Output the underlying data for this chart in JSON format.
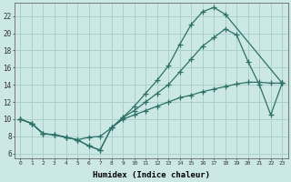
{
  "xlabel": "Humidex (Indice chaleur)",
  "bg_color": "#cce8e4",
  "grid_color": "#aacfcc",
  "line_color": "#2d7068",
  "xlim": [
    -0.5,
    23.5
  ],
  "ylim": [
    5.5,
    23.5
  ],
  "xticks": [
    0,
    1,
    2,
    3,
    4,
    5,
    6,
    7,
    8,
    9,
    10,
    11,
    12,
    13,
    14,
    15,
    16,
    17,
    18,
    19,
    20,
    21,
    22,
    23
  ],
  "yticks": [
    6,
    8,
    10,
    12,
    14,
    16,
    18,
    20,
    22
  ],
  "line1_x": [
    0,
    1,
    2,
    3,
    4,
    5,
    6,
    7,
    8,
    9,
    10,
    11,
    12,
    13,
    14,
    15,
    16,
    17,
    18,
    23
  ],
  "line1_y": [
    10,
    9.5,
    8.3,
    8.2,
    7.9,
    7.6,
    6.9,
    6.4,
    9.0,
    10.2,
    11.5,
    13.0,
    14.5,
    16.2,
    18.7,
    21.0,
    22.5,
    23.0,
    22.2,
    14.2
  ],
  "line2_x": [
    0,
    1,
    2,
    3,
    4,
    5,
    6,
    7,
    8,
    9,
    10,
    11,
    12,
    13,
    14,
    15,
    16,
    17,
    18,
    19,
    20,
    21,
    22,
    23
  ],
  "line2_y": [
    10,
    9.5,
    8.3,
    8.2,
    7.9,
    7.6,
    6.9,
    6.4,
    9.0,
    10.2,
    11.0,
    12.0,
    13.0,
    14.0,
    15.5,
    17.0,
    18.5,
    19.5,
    20.5,
    19.8,
    16.7,
    14.0,
    10.5,
    14.2
  ],
  "line3_x": [
    0,
    1,
    2,
    3,
    4,
    5,
    6,
    7,
    8,
    9,
    10,
    11,
    12,
    13,
    14,
    15,
    16,
    17,
    18,
    19,
    20,
    21,
    22,
    23
  ],
  "line3_y": [
    10,
    9.5,
    8.3,
    8.2,
    7.9,
    7.6,
    7.9,
    8.0,
    9.0,
    10.0,
    10.5,
    11.0,
    11.5,
    12.0,
    12.5,
    12.8,
    13.2,
    13.5,
    13.8,
    14.1,
    14.3,
    14.3,
    14.2,
    14.2
  ]
}
